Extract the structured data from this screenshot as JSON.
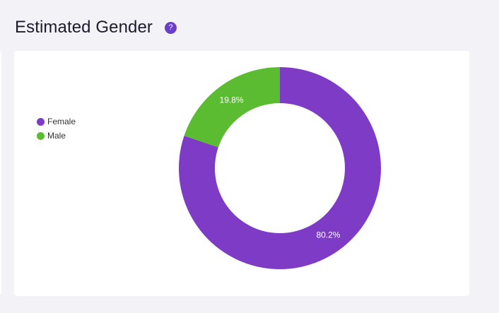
{
  "header": {
    "title": "Estimated Gender",
    "help_icon_glyph": "?",
    "help_icon": "question-circle-icon"
  },
  "colors": {
    "female": "#7e3bc5",
    "male": "#5bbc31",
    "accent": "#6a3fc9"
  },
  "chart_data": {
    "type": "pie",
    "donut": true,
    "title": "",
    "categories": [
      "Female",
      "Male"
    ],
    "values": [
      80.2,
      19.8
    ],
    "value_labels": [
      "80.2%",
      "19.8%"
    ],
    "legend_position": "left"
  }
}
